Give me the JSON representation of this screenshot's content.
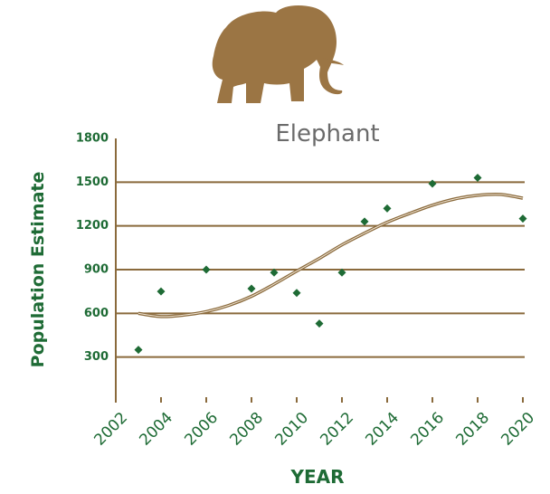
{
  "chart_data": {
    "type": "scatter",
    "title": "Elephant",
    "x_label": "YEAR",
    "y_label": "Population Estimate",
    "xlim": [
      2002,
      2020
    ],
    "xticks": [
      2002,
      2004,
      2006,
      2008,
      2010,
      2012,
      2014,
      2016,
      2018,
      2020
    ],
    "ylim": [
      0,
      1800
    ],
    "yticks": [
      300,
      600,
      900,
      1200,
      1500,
      1800
    ],
    "grid": true,
    "grid_color": "#8a6a3c",
    "series": [
      {
        "color": "#1e6b35",
        "marker": "diamond",
        "x": [
          2003,
          2004,
          2006,
          2008,
          2009,
          2010,
          2011,
          2012,
          2013,
          2014,
          2016,
          2018,
          2020
        ],
        "values": [
          350,
          750,
          900,
          770,
          880,
          740,
          530,
          880,
          1230,
          1320,
          1490,
          1530,
          1250
        ]
      },
      {
        "color": "#8a6a3c",
        "style": "line",
        "x": [
          2003,
          2004,
          2005,
          2006,
          2007,
          2008,
          2009,
          2010,
          2011,
          2012,
          2013,
          2014,
          2015,
          2016,
          2017,
          2018,
          2019,
          2020
        ],
        "values": [
          600,
          578,
          588,
          612,
          655,
          717,
          800,
          890,
          977,
          1070,
          1150,
          1225,
          1286,
          1342,
          1385,
          1410,
          1416,
          1390
        ]
      }
    ]
  }
}
